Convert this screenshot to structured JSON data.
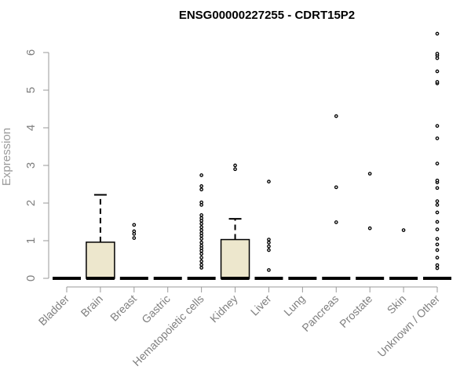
{
  "chart_data": {
    "type": "box",
    "title": "ENSG00000227255 - CDRT15P2",
    "ylabel": "Expression",
    "xlabel": "",
    "ylim": [
      0,
      6.6
    ],
    "yticks": [
      "0",
      "1",
      "2",
      "3",
      "4",
      "5",
      "6"
    ],
    "categories": [
      "Bladder",
      "Brain",
      "Breast",
      "Gastric",
      "Hematopoietic cells",
      "Kidney",
      "Liver",
      "Lung",
      "Pancreas",
      "Prostate",
      "Skin",
      "Unknown / Other"
    ],
    "box_fill": "#ede7cd",
    "boxes": [
      {
        "category": "Bladder",
        "q1": 0,
        "median": 0,
        "q3": 0,
        "whisker_low": 0,
        "whisker_high": 0,
        "outliers": []
      },
      {
        "category": "Brain",
        "q1": 0,
        "median": 0,
        "q3": 0.96,
        "whisker_low": 0,
        "whisker_high": 2.22,
        "outliers": []
      },
      {
        "category": "Breast",
        "q1": 0,
        "median": 0,
        "q3": 0,
        "whisker_low": 0,
        "whisker_high": 0,
        "outliers": [
          1.07,
          1.18,
          1.25,
          1.42
        ]
      },
      {
        "category": "Gastric",
        "q1": 0,
        "median": 0,
        "q3": 0,
        "whisker_low": 0,
        "whisker_high": 0,
        "outliers": []
      },
      {
        "category": "Hematopoietic cells",
        "q1": 0,
        "median": 0,
        "q3": 0,
        "whisker_low": 0,
        "whisker_high": 0,
        "outliers": [
          0.28,
          0.36,
          0.45,
          0.55,
          0.65,
          0.73,
          0.8,
          0.87,
          0.95,
          1.05,
          1.13,
          1.2,
          1.28,
          1.36,
          1.45,
          1.53,
          1.6,
          1.68,
          1.95,
          2.02,
          2.36,
          2.45,
          2.74
        ]
      },
      {
        "category": "Kidney",
        "q1": 0,
        "median": 0,
        "q3": 1.03,
        "whisker_low": 0,
        "whisker_high": 1.58,
        "outliers": [
          2.9,
          3.0
        ]
      },
      {
        "category": "Liver",
        "q1": 0,
        "median": 0,
        "q3": 0,
        "whisker_low": 0,
        "whisker_high": 0,
        "outliers": [
          0.22,
          0.75,
          0.85,
          0.95,
          1.03,
          2.57
        ]
      },
      {
        "category": "Lung",
        "q1": 0,
        "median": 0,
        "q3": 0,
        "whisker_low": 0,
        "whisker_high": 0,
        "outliers": []
      },
      {
        "category": "Pancreas",
        "q1": 0,
        "median": 0,
        "q3": 0,
        "whisker_low": 0,
        "whisker_high": 0,
        "outliers": [
          1.49,
          2.42,
          4.31
        ]
      },
      {
        "category": "Prostate",
        "q1": 0,
        "median": 0,
        "q3": 0,
        "whisker_low": 0,
        "whisker_high": 0,
        "outliers": [
          1.33,
          2.78
        ]
      },
      {
        "category": "Skin",
        "q1": 0,
        "median": 0,
        "q3": 0,
        "whisker_low": 0,
        "whisker_high": 0,
        "outliers": [
          1.28
        ]
      },
      {
        "category": "Unknown / Other",
        "q1": 0,
        "median": 0,
        "q3": 0,
        "whisker_low": 0,
        "whisker_high": 0,
        "outliers": [
          0.27,
          0.35,
          0.55,
          0.75,
          0.9,
          1.05,
          1.3,
          1.5,
          1.75,
          1.95,
          2.05,
          2.4,
          2.55,
          2.6,
          3.05,
          3.72,
          4.05,
          5.18,
          5.22,
          5.5,
          5.85,
          5.92,
          5.97,
          6.5
        ]
      }
    ],
    "grid": false,
    "legend": "none"
  }
}
